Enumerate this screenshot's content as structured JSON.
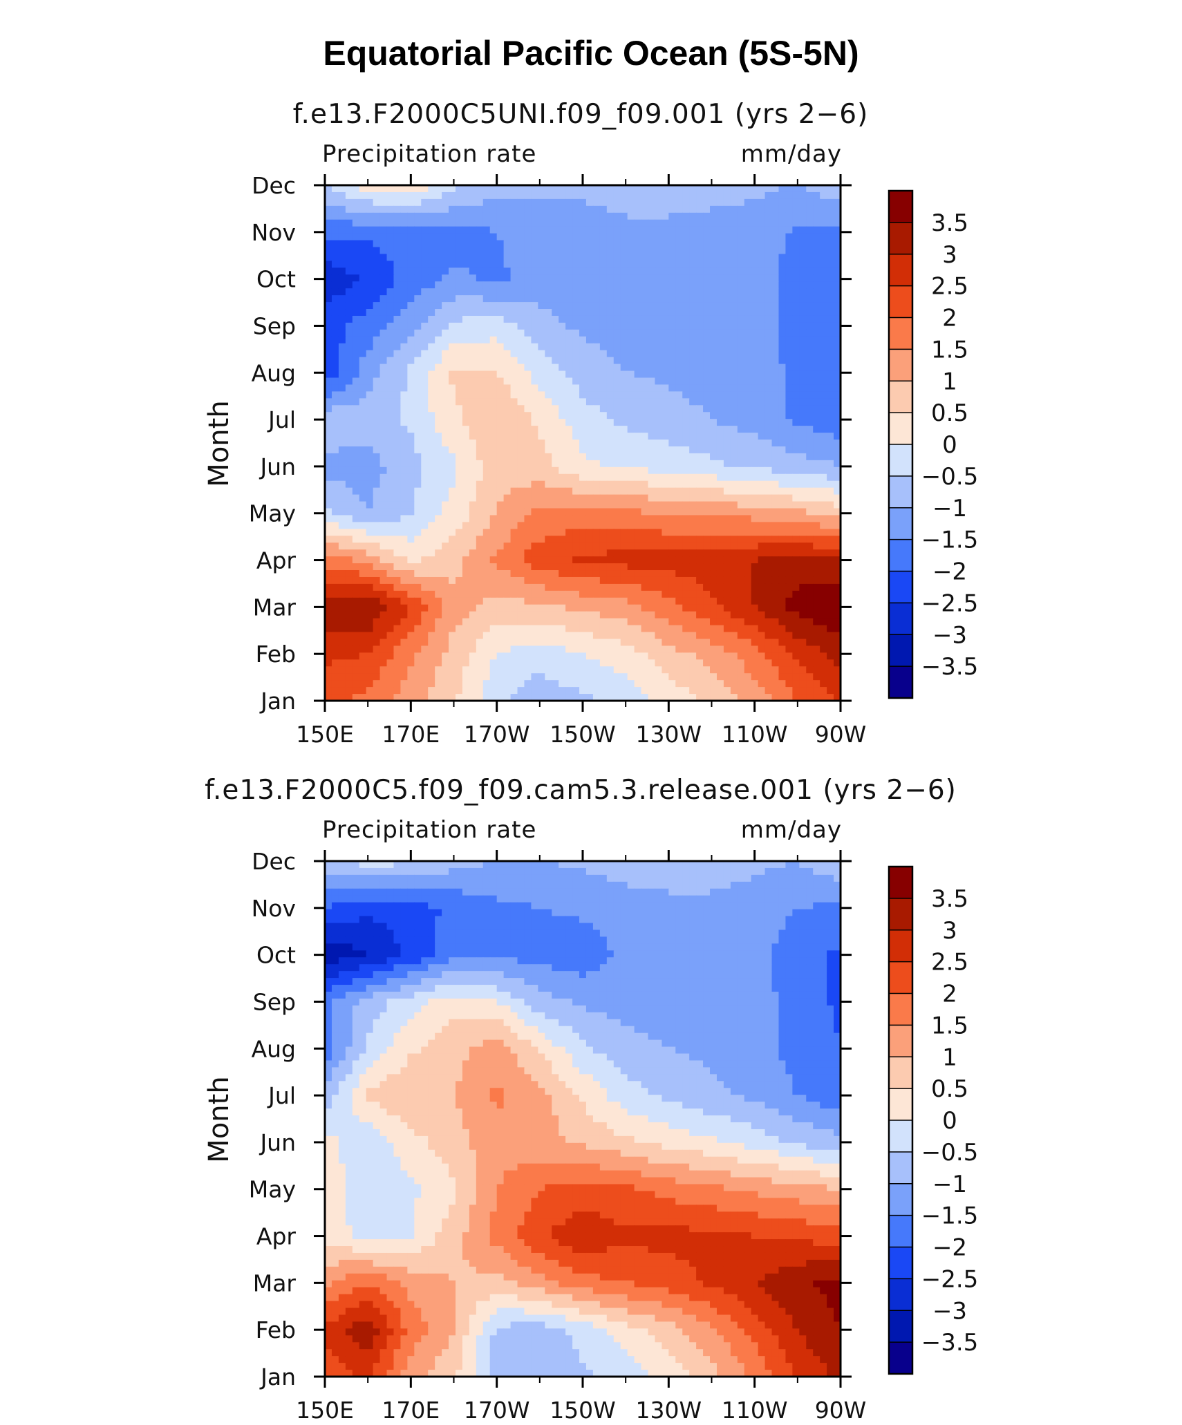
{
  "figure_title": "Equatorial Pacific Ocean (5S-5N)",
  "colors": {
    "levels": [
      "#08008c",
      "#0018b0",
      "#0a2ed4",
      "#1a48f5",
      "#4679fb",
      "#7aa1fa",
      "#a7c0fb",
      "#d2e2fc",
      "#fde6d6",
      "#fccbb0",
      "#fba07a",
      "#fa7a4a",
      "#ed4d1c",
      "#d22e06",
      "#a81a00",
      "#870000"
    ]
  },
  "chart_data": [
    {
      "type": "heatmap",
      "title": "f.e13.F2000C5UNI.f09_f09.001 (yrs 2−6)",
      "left_label": "Precipitation rate",
      "right_label": "mm/day",
      "xlabel": "",
      "ylabel": "Month",
      "xticks": [
        "150E",
        "170E",
        "170W",
        "150W",
        "130W",
        "110W",
        "90W"
      ],
      "xlim_lon_deg_east": [
        150,
        270
      ],
      "yticks": [
        "Jan",
        "Feb",
        "Mar",
        "Apr",
        "May",
        "Jun",
        "Jul",
        "Aug",
        "Sep",
        "Oct",
        "Nov",
        "Dec"
      ],
      "colorbar_labels": [
        "3.5",
        "3",
        "2.5",
        "2",
        "1.5",
        "1",
        "0.5",
        "0",
        "−0.5",
        "−1",
        "−1.5",
        "−2",
        "−2.5",
        "−3",
        "−3.5"
      ],
      "zlim": [
        -4,
        4
      ],
      "x_centers": [
        150,
        160,
        170,
        180,
        190,
        200,
        210,
        220,
        230,
        240,
        250,
        260,
        270
      ],
      "grid": [
        [
          2.3,
          1.8,
          1.2,
          0.6,
          -0.4,
          -0.8,
          -0.6,
          -0.3,
          0.2,
          0.6,
          1.2,
          2.0,
          2.6
        ],
        [
          2.6,
          2.5,
          1.6,
          0.8,
          0.0,
          -0.3,
          0.0,
          0.3,
          0.8,
          1.2,
          1.8,
          2.6,
          3.2
        ],
        [
          3.4,
          3.5,
          2.5,
          1.2,
          0.8,
          0.9,
          1.1,
          1.3,
          1.8,
          2.4,
          3.0,
          3.7,
          4.0
        ],
        [
          1.8,
          1.3,
          0.4,
          0.8,
          1.6,
          2.3,
          2.6,
          2.7,
          2.7,
          2.8,
          3.0,
          3.2,
          3.0
        ],
        [
          -0.4,
          -1.0,
          -0.5,
          0.2,
          1.0,
          1.6,
          1.7,
          1.6,
          1.5,
          1.4,
          1.3,
          1.1,
          0.8
        ],
        [
          -1.2,
          -1.2,
          -0.7,
          -0.1,
          0.8,
          0.7,
          0.1,
          -0.1,
          -0.2,
          -0.4,
          -0.6,
          -0.8,
          -1.0
        ],
        [
          -0.6,
          -0.7,
          -0.4,
          0.4,
          1.0,
          0.4,
          -0.3,
          -0.6,
          -0.8,
          -1.0,
          -1.2,
          -1.6,
          -1.8
        ],
        [
          -2.4,
          -1.2,
          -0.4,
          0.6,
          0.5,
          -0.2,
          -0.7,
          -1.0,
          -1.1,
          -1.2,
          -1.3,
          -1.6,
          -2.0
        ],
        [
          -2.2,
          -1.8,
          -1.2,
          -0.4,
          -0.2,
          -0.8,
          -1.1,
          -1.2,
          -1.3,
          -1.3,
          -1.3,
          -1.7,
          -2.0
        ],
        [
          -2.9,
          -2.4,
          -1.8,
          -1.4,
          -1.6,
          -1.3,
          -1.3,
          -1.2,
          -1.2,
          -1.2,
          -1.3,
          -1.7,
          -1.9
        ],
        [
          -1.8,
          -1.9,
          -1.8,
          -1.7,
          -1.5,
          -1.2,
          -1.2,
          -1.1,
          -1.1,
          -1.1,
          -1.2,
          -1.6,
          -1.7
        ],
        [
          -0.5,
          0.3,
          0.5,
          -0.4,
          -0.8,
          -0.9,
          -0.9,
          -0.8,
          -0.8,
          -0.9,
          -0.9,
          -1.0,
          -0.6
        ]
      ]
    },
    {
      "type": "heatmap",
      "title": "f.e13.F2000C5.f09_f09.cam5.3.release.001 (yrs 2−6)",
      "left_label": "Precipitation rate",
      "right_label": "mm/day",
      "xlabel": "",
      "ylabel": "Month",
      "xticks": [
        "150E",
        "170E",
        "170W",
        "150W",
        "130W",
        "110W",
        "90W"
      ],
      "xlim_lon_deg_east": [
        150,
        270
      ],
      "yticks": [
        "Jan",
        "Feb",
        "Mar",
        "Apr",
        "May",
        "Jun",
        "Jul",
        "Aug",
        "Sep",
        "Oct",
        "Nov",
        "Dec"
      ],
      "colorbar_labels": [
        "3.5",
        "3",
        "2.5",
        "2",
        "1.5",
        "1",
        "0.5",
        "0",
        "−0.5",
        "−1",
        "−1.5",
        "−2",
        "−2.5",
        "−3",
        "−3.5"
      ],
      "zlim": [
        -4,
        4
      ],
      "x_centers": [
        150,
        160,
        170,
        180,
        190,
        200,
        210,
        220,
        230,
        240,
        250,
        260,
        270
      ],
      "grid": [
        [
          2.2,
          2.6,
          1.2,
          0.6,
          -0.8,
          -1.0,
          -0.6,
          -0.3,
          0.2,
          0.8,
          1.6,
          2.6,
          3.1
        ],
        [
          2.6,
          3.4,
          1.8,
          1.0,
          -0.6,
          -0.8,
          -0.3,
          0.3,
          0.8,
          1.4,
          2.2,
          3.0,
          3.5
        ],
        [
          1.4,
          2.0,
          1.3,
          1.0,
          0.8,
          1.3,
          1.8,
          2.0,
          2.2,
          2.6,
          3.0,
          3.4,
          3.7
        ],
        [
          0.4,
          -0.3,
          0.0,
          0.8,
          1.7,
          2.4,
          2.9,
          2.6,
          2.7,
          2.6,
          2.5,
          2.4,
          2.2
        ],
        [
          0.3,
          -0.3,
          -0.1,
          0.4,
          1.5,
          2.0,
          2.2,
          2.1,
          1.8,
          1.6,
          1.4,
          1.2,
          1.0
        ],
        [
          0.2,
          -0.4,
          0.3,
          0.8,
          1.3,
          1.2,
          0.9,
          0.6,
          0.3,
          0.1,
          -0.2,
          -0.6,
          -0.8
        ],
        [
          -0.8,
          0.6,
          1.0,
          1.0,
          1.6,
          1.2,
          0.4,
          -0.3,
          -0.6,
          -0.9,
          -1.1,
          -1.5,
          -1.9
        ],
        [
          -1.8,
          -0.4,
          0.4,
          0.8,
          1.3,
          0.4,
          -0.4,
          -0.8,
          -1.0,
          -1.1,
          -1.3,
          -1.7,
          -2.0
        ],
        [
          -1.6,
          -0.8,
          -0.2,
          0.3,
          0.0,
          -0.8,
          -1.1,
          -1.2,
          -1.3,
          -1.3,
          -1.3,
          -1.7,
          -2.1
        ],
        [
          -3.4,
          -3.0,
          -2.4,
          -1.7,
          -1.6,
          -1.7,
          -1.8,
          -1.4,
          -1.3,
          -1.3,
          -1.3,
          -1.8,
          -2.1
        ],
        [
          -2.0,
          -2.4,
          -2.2,
          -1.9,
          -1.6,
          -1.5,
          -1.4,
          -1.2,
          -1.1,
          -1.1,
          -1.2,
          -1.5,
          -1.6
        ],
        [
          -0.6,
          -0.3,
          -0.4,
          -0.8,
          -1.0,
          -1.0,
          -0.9,
          -0.8,
          -0.8,
          -0.8,
          -0.9,
          -1.0,
          -0.6
        ]
      ]
    }
  ]
}
